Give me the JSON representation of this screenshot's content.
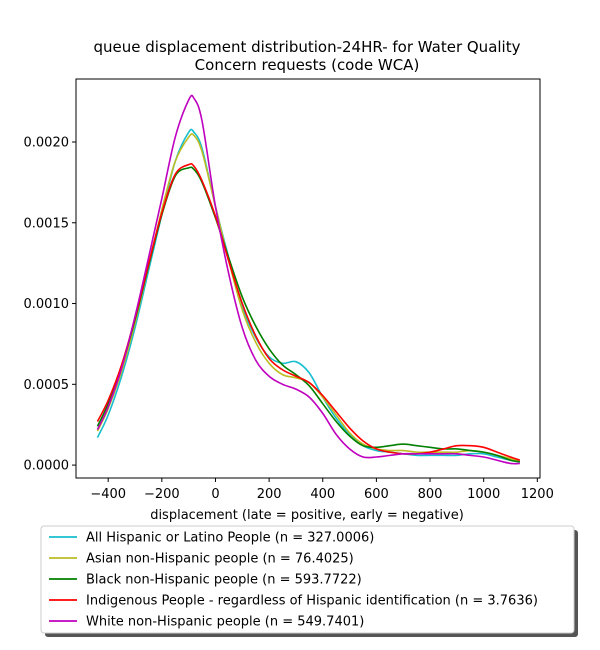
{
  "chart_data": {
    "type": "line",
    "title_line1": "queue displacement distribution-24HR-  for Water Quality",
    "title_line2": "Concern  requests (code WCA)",
    "xlabel": "displacement (late = positive, early = negative)",
    "ylabel": "",
    "xlim": [
      -520,
      1210
    ],
    "ylim": [
      -8e-05,
      0.00239
    ],
    "xticks": [
      -400,
      -200,
      0,
      200,
      400,
      600,
      800,
      1000,
      1200
    ],
    "xtick_labels": [
      "−400",
      "−200",
      "0",
      "200",
      "400",
      "600",
      "800",
      "1000",
      "1200"
    ],
    "yticks": [
      0.0,
      0.0005,
      0.001,
      0.0015,
      0.002
    ],
    "ytick_labels": [
      "0.0000",
      "0.0005",
      "0.0010",
      "0.0015",
      "0.0020"
    ],
    "grid": false,
    "legend_placement": "below",
    "series": [
      {
        "name": "All Hispanic or Latino People (n = 327.0006)",
        "color": "#17becf",
        "x": [
          -440,
          -400,
          -350,
          -300,
          -250,
          -200,
          -150,
          -100,
          -80,
          -50,
          0,
          50,
          100,
          150,
          200,
          250,
          300,
          350,
          400,
          450,
          500,
          550,
          600,
          650,
          700,
          750,
          800,
          850,
          900,
          950,
          1000,
          1050,
          1100,
          1135
        ],
        "y": [
          0.00017,
          0.00031,
          0.00055,
          0.00085,
          0.0012,
          0.00155,
          0.00188,
          0.00206,
          0.00206,
          0.00196,
          0.0016,
          0.00128,
          0.00098,
          0.00079,
          0.00067,
          0.00063,
          0.00064,
          0.00057,
          0.00042,
          0.00029,
          0.00019,
          0.00012,
          9e-05,
          8e-05,
          7e-05,
          6e-05,
          6e-05,
          6e-05,
          6e-05,
          7e-05,
          7e-05,
          5e-05,
          3e-05,
          2e-05
        ]
      },
      {
        "name": "Asian non-Hispanic people (n = 76.4025)",
        "color": "#bcbd22",
        "x": [
          -440,
          -400,
          -350,
          -300,
          -250,
          -200,
          -150,
          -100,
          -80,
          -50,
          0,
          50,
          100,
          150,
          200,
          250,
          300,
          350,
          400,
          450,
          500,
          550,
          600,
          650,
          700,
          750,
          800,
          850,
          900,
          950,
          1000,
          1050,
          1100,
          1135
        ],
        "y": [
          0.00021,
          0.00035,
          0.00058,
          0.00088,
          0.00123,
          0.00158,
          0.00188,
          0.00203,
          0.00204,
          0.00194,
          0.0016,
          0.00126,
          0.00096,
          0.00076,
          0.00063,
          0.00056,
          0.00054,
          0.00051,
          0.00042,
          0.00031,
          0.0002,
          0.00013,
          0.0001,
          9e-05,
          9e-05,
          8e-05,
          8e-05,
          8e-05,
          8e-05,
          9e-05,
          8e-05,
          6e-05,
          4e-05,
          2e-05
        ]
      },
      {
        "name": "Black non-Hispanic people (n = 593.7722)",
        "color": "#008000",
        "x": [
          -440,
          -400,
          -350,
          -300,
          -250,
          -200,
          -150,
          -100,
          -80,
          -50,
          0,
          50,
          100,
          150,
          200,
          250,
          300,
          350,
          400,
          450,
          500,
          550,
          600,
          650,
          700,
          750,
          800,
          850,
          900,
          950,
          1000,
          1050,
          1100,
          1135
        ],
        "y": [
          0.00024,
          0.00038,
          0.00061,
          0.0009,
          0.00123,
          0.00155,
          0.00179,
          0.00184,
          0.00183,
          0.00175,
          0.00153,
          0.00128,
          0.00104,
          0.00086,
          0.00072,
          0.00062,
          0.00056,
          0.00049,
          0.00038,
          0.00027,
          0.00018,
          0.00012,
          0.00011,
          0.00012,
          0.00013,
          0.00012,
          0.00011,
          0.0001,
          0.0001,
          9e-05,
          8e-05,
          6e-05,
          3e-05,
          2e-05
        ]
      },
      {
        "name": "Indigenous People - regardless of Hispanic identification (n = 3.7636)",
        "color": "#ff0000",
        "x": [
          -440,
          -400,
          -350,
          -300,
          -250,
          -200,
          -150,
          -100,
          -80,
          -50,
          0,
          50,
          100,
          150,
          200,
          250,
          300,
          350,
          400,
          450,
          500,
          550,
          600,
          650,
          700,
          750,
          800,
          850,
          900,
          950,
          1000,
          1050,
          1100,
          1135
        ],
        "y": [
          0.00027,
          0.0004,
          0.00062,
          0.00091,
          0.00124,
          0.00156,
          0.0018,
          0.00186,
          0.00185,
          0.00176,
          0.00154,
          0.00126,
          0.001,
          0.0008,
          0.00066,
          0.00059,
          0.00055,
          0.00051,
          0.00043,
          0.00033,
          0.00023,
          0.00015,
          0.0001,
          8e-05,
          7e-05,
          7e-05,
          8e-05,
          0.0001,
          0.00012,
          0.00012,
          0.00011,
          8e-05,
          5e-05,
          3e-05
        ]
      },
      {
        "name": "White non-Hispanic people (n = 549.7401)",
        "color": "#bf00bf",
        "x": [
          -440,
          -400,
          -350,
          -300,
          -250,
          -200,
          -150,
          -100,
          -80,
          -50,
          0,
          50,
          100,
          150,
          200,
          250,
          300,
          350,
          400,
          450,
          500,
          550,
          600,
          650,
          700,
          750,
          800,
          850,
          900,
          950,
          1000,
          1050,
          1100,
          1135
        ],
        "y": [
          0.00022,
          0.00036,
          0.0006,
          0.00092,
          0.00128,
          0.00165,
          0.00203,
          0.00226,
          0.00227,
          0.00213,
          0.0016,
          0.00118,
          0.00085,
          0.00065,
          0.00055,
          0.0005,
          0.00047,
          0.00042,
          0.00032,
          0.00019,
          0.0001,
          5e-05,
          5e-05,
          6e-05,
          7e-05,
          7e-05,
          7e-05,
          7e-05,
          7e-05,
          6e-05,
          5e-05,
          3e-05,
          1e-05,
          1e-05
        ]
      }
    ]
  }
}
